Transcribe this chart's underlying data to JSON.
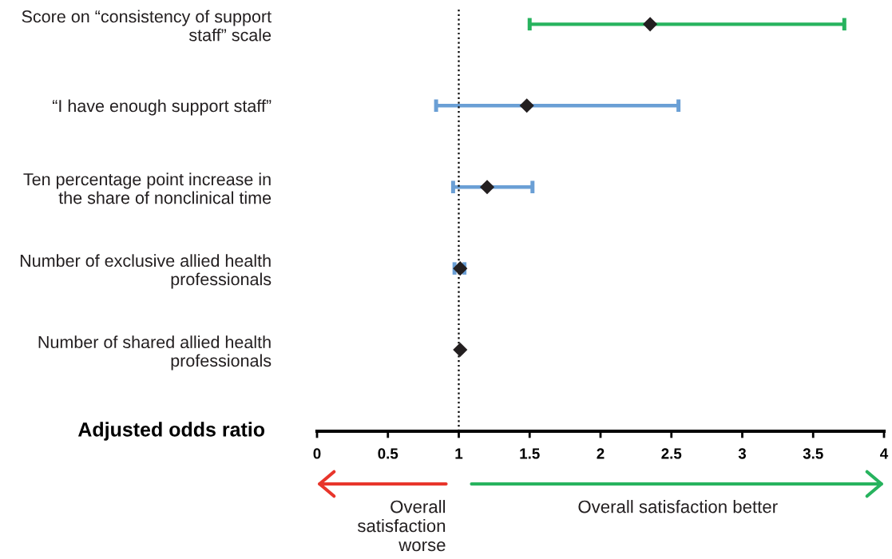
{
  "chart_data": {
    "type": "scatter",
    "orientation": "horizontal",
    "xlabel": "Adjusted odds ratio",
    "categories": [
      "Score on “consistency of support\nstaff” scale",
      "“I have enough support staff”",
      "Ten percentage point increase in\nthe share of nonclinical time",
      "Number of exclusive allied health\nprofessionals",
      "Number of shared allied health\nprofessionals"
    ],
    "series": [
      {
        "color": "#231f20",
        "values": [
          2.35,
          1.48,
          1.2,
          1.01,
          1.01
        ],
        "errors": [
          [
            1.5,
            3.72
          ],
          [
            0.84,
            2.55
          ],
          [
            0.96,
            1.52
          ],
          [
            0.97,
            1.04
          ],
          null
        ]
      }
    ],
    "marker": "diamond",
    "xlim": [
      0,
      4
    ],
    "xticks": [
      0,
      0.5,
      1,
      1.5,
      2,
      2.5,
      3,
      3.5,
      4
    ],
    "ref_lines": [
      {
        "axis": "x",
        "value": 1,
        "color": "#000000",
        "line_style": "dotted"
      }
    ],
    "annotations": [
      "Overall\nsatisfaction\nworse",
      "Overall satisfaction better"
    ]
  }
}
